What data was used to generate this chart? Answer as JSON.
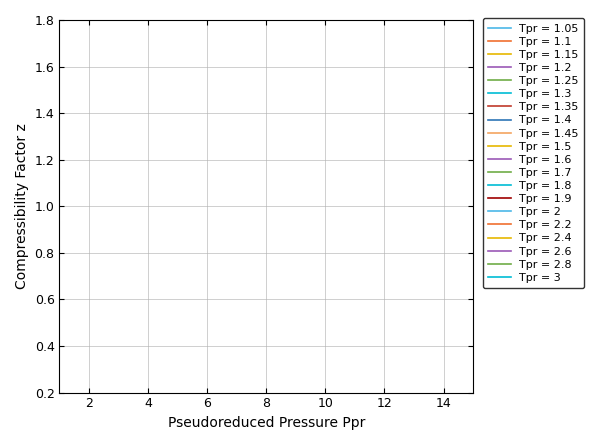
{
  "xlabel": "Pseudoreduced Pressure Ppr",
  "ylabel": "Compressibility Factor z",
  "xlim": [
    1,
    15
  ],
  "ylim": [
    0.2,
    1.8
  ],
  "xticks": [
    2,
    4,
    6,
    8,
    10,
    12,
    14
  ],
  "yticks": [
    0.2,
    0.4,
    0.6,
    0.8,
    1.0,
    1.2,
    1.4,
    1.6,
    1.8
  ],
  "Tpr_values": [
    1.05,
    1.1,
    1.15,
    1.2,
    1.25,
    1.3,
    1.35,
    1.4,
    1.45,
    1.5,
    1.6,
    1.7,
    1.8,
    1.9,
    2.0,
    2.2,
    2.4,
    2.6,
    2.8,
    3.0
  ],
  "colors": [
    "#4cb8e8",
    "#f07030",
    "#e6b800",
    "#9b59b6",
    "#70ad47",
    "#00bcd4",
    "#c0392b",
    "#2e75b6",
    "#f4a460",
    "#e6b800",
    "#9b59b6",
    "#70ad47",
    "#00bcd4",
    "#a00000",
    "#4cb8e8",
    "#f07030",
    "#e6b800",
    "#9b59b6",
    "#70ad47",
    "#00bcd4"
  ],
  "legend_labels": [
    "Tpr = 1.05",
    "Tpr = 1.1",
    "Tpr = 1.15",
    "Tpr = 1.2",
    "Tpr = 1.25",
    "Tpr = 1.3",
    "Tpr = 1.35",
    "Tpr = 1.4",
    "Tpr = 1.45",
    "Tpr = 1.5",
    "Tpr = 1.6",
    "Tpr = 1.7",
    "Tpr = 1.8",
    "Tpr = 1.9",
    "Tpr = 2",
    "Tpr = 2.2",
    "Tpr = 2.4",
    "Tpr = 2.6",
    "Tpr = 2.8",
    "Tpr = 3"
  ],
  "linewidth": 1.2,
  "legend_fontsize": 8.0,
  "axis_fontsize": 10
}
